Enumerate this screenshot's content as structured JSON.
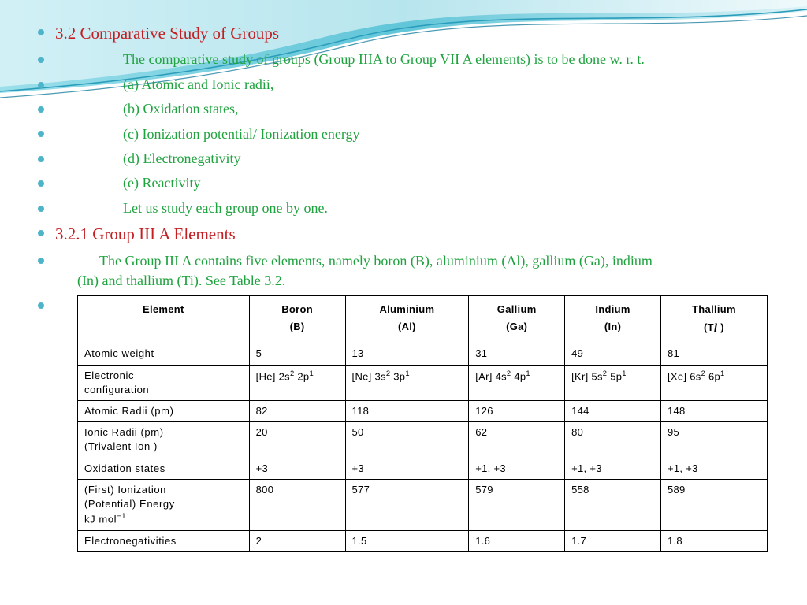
{
  "colors": {
    "bullet": "#4db4c9",
    "heading": "#c41e23",
    "body_text": "#1fa33f",
    "wave_light": "#b2e4ee",
    "wave_mid": "#5cc6d8",
    "wave_dark": "#2a9dbb",
    "wave_line": "#1d7fa0",
    "table_border": "#000000",
    "background": "#ffffff"
  },
  "headings": {
    "h1": "3.2 Comparative Study of Groups",
    "h2": "3.2.1 Group III A Elements"
  },
  "list": {
    "intro": "The comparative study of groups (Group IIIA to Group VII A elements) is to be done w. r. t.",
    "a": "(a) Atomic and Ionic radii,",
    "b": "(b) Oxidation states,",
    "c": "(c) Ionization potential/ Ionization energy",
    "d": "(d) Electronegativity",
    "e": "(e) Reactivity",
    "study": "Let us study each group one by one.",
    "para1": "The Group III A contains five elements, namely boron (B), aluminium (Al), gallium (Ga), indium",
    "para2": "(In) and thallium (Ti). See       Table 3.2."
  },
  "table": {
    "columns": [
      {
        "label_l1": "Element",
        "label_l2": ""
      },
      {
        "label_l1": "Boron",
        "label_l2": "(B)"
      },
      {
        "label_l1": "Aluminium",
        "label_l2": "(Al)"
      },
      {
        "label_l1": "Gallium",
        "label_l2": "(Ga)"
      },
      {
        "label_l1": "Indium",
        "label_l2": "(In)"
      },
      {
        "label_l1": "Thallium",
        "label_l2": "(T   )"
      }
    ],
    "col_widths": [
      "200px",
      "112px",
      "144px",
      "112px",
      "112px",
      "124px"
    ],
    "rows": [
      {
        "label": "Atomic weight",
        "cells": [
          "5",
          "13",
          "31",
          "49",
          "81"
        ]
      },
      {
        "label": "Electronic configuration",
        "cells_html": [
          "[He] 2s<span class='sup'>2</span> 2p<span class='sup'>1</span>",
          "[Ne] 3s<span class='sup'>2</span> 3p<span class='sup'>1</span>",
          "[Ar] 4s<span class='sup'>2</span> 4p<span class='sup'>1</span>",
          "[Kr] 5s<span class='sup'>2</span> 5p<span class='sup'>1</span>",
          "[Xe] 6s<span class='sup'>2</span> 6p<span class='sup'>1</span>"
        ],
        "label_html": "Electronic<br>configuration"
      },
      {
        "label": "Atomic Radii (pm)",
        "cells": [
          "82",
          "118",
          "126",
          "144",
          "148"
        ]
      },
      {
        "label": "Ionic Radii (pm) (Trivalent Ion )",
        "label_html": "Ionic Radii (pm)<br>(Trivalent Ion )",
        "cells": [
          "20",
          "50",
          "62",
          "80",
          "95"
        ]
      },
      {
        "label": "Oxidation states",
        "cells": [
          "+3",
          "+3",
          "+1, +3",
          "+1, +3",
          "+1, +3"
        ]
      },
      {
        "label": "(First) Ionization (Potential) Energy kJ mol⁻¹",
        "label_html": "(First) Ionization<br>(Potential) Energy<br>kJ mol<span class='subm'>−1</span>",
        "cells": [
          "800",
          "577",
          "579",
          "558",
          "589"
        ]
      },
      {
        "label": "Electronegativities",
        "cells": [
          "2",
          "1.5",
          "1.6",
          "1.7",
          "1.8"
        ]
      }
    ]
  }
}
